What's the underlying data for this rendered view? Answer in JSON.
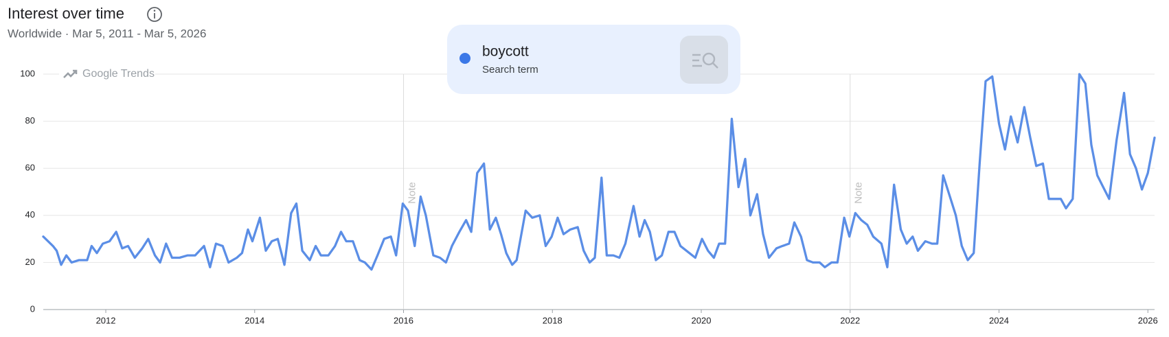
{
  "chart_data": {
    "type": "line",
    "title": "Interest over time",
    "subtitle": "Worldwide · Mar 5, 2011 - Mar 5, 2026",
    "watermark": "Google Trends",
    "grid": true,
    "xlim": [
      2011.16,
      2026.09
    ],
    "xticks": [
      2012,
      2014,
      2016,
      2018,
      2020,
      2022,
      2024,
      2026
    ],
    "ylim": [
      0,
      100
    ],
    "yticks": [
      0,
      20,
      40,
      60,
      80,
      100
    ],
    "annotations": [
      {
        "text": "Note",
        "x": 2016
      },
      {
        "text": "Note",
        "x": 2022
      }
    ],
    "x": [
      2011.16,
      2011.29,
      2011.34,
      2011.4,
      2011.47,
      2011.54,
      2011.64,
      2011.75,
      2011.81,
      2011.88,
      2011.96,
      2012.05,
      2012.14,
      2012.22,
      2012.3,
      2012.39,
      2012.49,
      2012.57,
      2012.66,
      2012.73,
      2012.81,
      2012.89,
      2012.99,
      2013.1,
      2013.2,
      2013.32,
      2013.4,
      2013.48,
      2013.57,
      2013.65,
      2013.76,
      2013.83,
      2013.91,
      2013.97,
      2014.07,
      2014.15,
      2014.23,
      2014.31,
      2014.4,
      2014.49,
      2014.56,
      2014.64,
      2014.74,
      2014.82,
      2014.89,
      2014.99,
      2015.08,
      2015.16,
      2015.23,
      2015.32,
      2015.41,
      2015.48,
      2015.57,
      2015.65,
      2015.74,
      2015.83,
      2015.9,
      2015.99,
      2016.06,
      2016.15,
      2016.23,
      2016.3,
      2016.4,
      2016.49,
      2016.57,
      2016.65,
      2016.75,
      2016.84,
      2016.91,
      2016.99,
      2017.08,
      2017.16,
      2017.24,
      2017.31,
      2017.38,
      2017.46,
      2017.52,
      2017.64,
      2017.73,
      2017.83,
      2017.91,
      2017.99,
      2018.07,
      2018.15,
      2018.24,
      2018.34,
      2018.42,
      2018.5,
      2018.57,
      2018.66,
      2018.73,
      2018.82,
      2018.9,
      2018.98,
      2019.09,
      2019.17,
      2019.24,
      2019.31,
      2019.39,
      2019.47,
      2019.56,
      2019.64,
      2019.72,
      2019.84,
      2019.92,
      2020.01,
      2020.09,
      2020.17,
      2020.24,
      2020.32,
      2020.41,
      2020.5,
      2020.59,
      2020.66,
      2020.75,
      2020.83,
      2020.91,
      2021.01,
      2021.09,
      2021.18,
      2021.25,
      2021.34,
      2021.42,
      2021.5,
      2021.59,
      2021.66,
      2021.75,
      2021.83,
      2021.92,
      2021.99,
      2022.07,
      2022.15,
      2022.23,
      2022.31,
      2022.42,
      2022.5,
      2022.59,
      2022.68,
      2022.76,
      2022.84,
      2022.91,
      2023.01,
      2023.1,
      2023.17,
      2023.25,
      2023.34,
      2023.42,
      2023.5,
      2023.58,
      2023.66,
      2023.74,
      2023.82,
      2023.91,
      2024.0,
      2024.08,
      2024.16,
      2024.25,
      2024.34,
      2024.42,
      2024.5,
      2024.59,
      2024.67,
      2024.75,
      2024.83,
      2024.9,
      2024.99,
      2025.08,
      2025.16,
      2025.24,
      2025.32,
      2025.4,
      2025.48,
      2025.58,
      2025.68,
      2025.76,
      2025.84,
      2025.92,
      2026.0,
      2026.09
    ],
    "series": [
      {
        "name": "boycott",
        "label": "Search term",
        "color": "#5b8ee6",
        "values": [
          31,
          27,
          25,
          19,
          23,
          20,
          21,
          21,
          27,
          24,
          28,
          29,
          33,
          26,
          27,
          22,
          26,
          30,
          23,
          20,
          28,
          22,
          22,
          23,
          23,
          27,
          18,
          28,
          27,
          20,
          22,
          24,
          34,
          29,
          39,
          25,
          29,
          30,
          19,
          41,
          45,
          25,
          21,
          27,
          23,
          23,
          27,
          33,
          29,
          29,
          21,
          20,
          17,
          23,
          30,
          31,
          23,
          45,
          42,
          27,
          48,
          40,
          23,
          22,
          20,
          27,
          33,
          38,
          33,
          58,
          62,
          34,
          39,
          32,
          24,
          19,
          21,
          42,
          39,
          40,
          27,
          31,
          39,
          32,
          34,
          35,
          25,
          20,
          22,
          56,
          23,
          23,
          22,
          28,
          44,
          31,
          38,
          33,
          21,
          23,
          33,
          33,
          27,
          24,
          22,
          30,
          25,
          22,
          28,
          28,
          81,
          52,
          64,
          40,
          49,
          32,
          22,
          26,
          27,
          28,
          37,
          31,
          21,
          20,
          20,
          18,
          20,
          20,
          39,
          31,
          41,
          38,
          36,
          31,
          28,
          18,
          53,
          34,
          28,
          31,
          25,
          29,
          28,
          28,
          57,
          48,
          40,
          27,
          21,
          24,
          62,
          97,
          99,
          79,
          68,
          82,
          71,
          86,
          73,
          61,
          62,
          47,
          47,
          47,
          43,
          47,
          100,
          96,
          70,
          57,
          52,
          47,
          72,
          92,
          66,
          60,
          51,
          58,
          73
        ]
      }
    ]
  }
}
